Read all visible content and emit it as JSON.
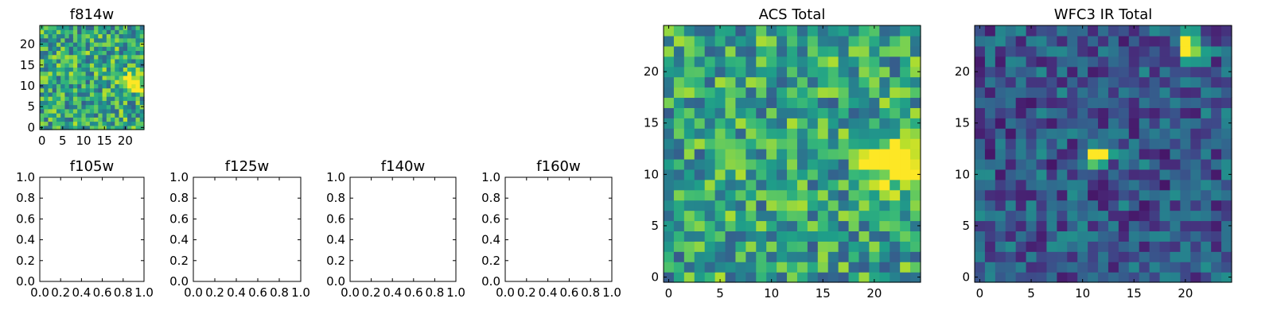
{
  "colormap": "viridis",
  "chart_data": [
    {
      "type": "heatmap",
      "title": "f814w",
      "xlim": [
        -0.5,
        24.5
      ],
      "ylim": [
        -0.5,
        24.5
      ],
      "xticks": [
        0,
        5,
        10,
        15,
        20
      ],
      "yticks": [
        0,
        5,
        10,
        15,
        20
      ],
      "grid_size": [
        25,
        25
      ],
      "seed": 814,
      "base_value": 0.6,
      "noise": 0.3,
      "hotspots": [
        {
          "x": 22,
          "y": 11,
          "sigma": 1.6,
          "amp": 0.6
        }
      ]
    },
    {
      "type": "empty",
      "title": "f105w",
      "xlim": [
        0.0,
        1.0
      ],
      "ylim": [
        0.0,
        1.0
      ],
      "xticks": [
        "0.0",
        "0.2",
        "0.4",
        "0.6",
        "0.8",
        "1.0"
      ],
      "yticks": [
        "0.0",
        "0.2",
        "0.4",
        "0.6",
        "0.8",
        "1.0"
      ]
    },
    {
      "type": "empty",
      "title": "f125w",
      "xlim": [
        0.0,
        1.0
      ],
      "ylim": [
        0.0,
        1.0
      ],
      "xticks": [
        "0.0",
        "0.2",
        "0.4",
        "0.6",
        "0.8",
        "1.0"
      ],
      "yticks": [
        "0.0",
        "0.2",
        "0.4",
        "0.6",
        "0.8",
        "1.0"
      ]
    },
    {
      "type": "empty",
      "title": "f140w",
      "xlim": [
        0.0,
        1.0
      ],
      "ylim": [
        0.0,
        1.0
      ],
      "xticks": [
        "0.0",
        "0.2",
        "0.4",
        "0.6",
        "0.8",
        "1.0"
      ],
      "yticks": [
        "0.0",
        "0.2",
        "0.4",
        "0.6",
        "0.8",
        "1.0"
      ]
    },
    {
      "type": "empty",
      "title": "f160w",
      "xlim": [
        0.0,
        1.0
      ],
      "ylim": [
        0.0,
        1.0
      ],
      "xticks": [
        "0.0",
        "0.2",
        "0.4",
        "0.6",
        "0.8",
        "1.0"
      ],
      "yticks": [
        "0.0",
        "0.2",
        "0.4",
        "0.6",
        "0.8",
        "1.0"
      ]
    },
    {
      "type": "heatmap",
      "title": "ACS Total",
      "xlim": [
        -0.5,
        24.5
      ],
      "ylim": [
        -0.5,
        24.5
      ],
      "xticks": [
        0,
        5,
        10,
        15,
        20
      ],
      "yticks": [
        0,
        5,
        10,
        15,
        20
      ],
      "grid_size": [
        25,
        25
      ],
      "seed": 2020,
      "base_value": 0.58,
      "noise": 0.3,
      "hotspots": [
        {
          "x": 22,
          "y": 11,
          "sigma": 1.8,
          "amp": 0.6
        }
      ]
    },
    {
      "type": "heatmap",
      "title": "WFC3 IR Total",
      "xlim": [
        -0.5,
        24.5
      ],
      "ylim": [
        -0.5,
        24.5
      ],
      "xticks": [
        0,
        5,
        10,
        15,
        20
      ],
      "yticks": [
        0,
        5,
        10,
        15,
        20
      ],
      "grid_size": [
        25,
        25
      ],
      "seed": 3160,
      "base_value": 0.28,
      "noise": 0.22,
      "hotspots": [
        {
          "x": 20.5,
          "y": 22.5,
          "sigma": 0.8,
          "amp": 0.9
        },
        {
          "x": 11.5,
          "y": 12,
          "sigma": 0.7,
          "amp": 0.85
        }
      ]
    }
  ]
}
